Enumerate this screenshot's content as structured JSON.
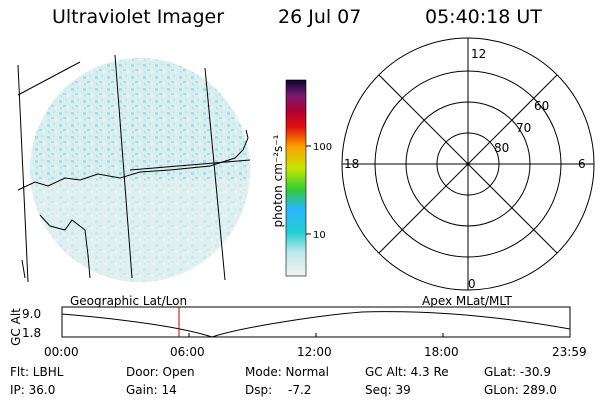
{
  "header": {
    "title": "Ultraviolet Imager",
    "date": "26 Jul 07",
    "time": "05:40:18 UT"
  },
  "colorbar": {
    "label": "photon cm⁻²s⁻¹",
    "ticks": [
      "100",
      "10"
    ]
  },
  "polar": {
    "mlt_labels": {
      "top": "12",
      "left": "18",
      "right": "6",
      "bottom": "0"
    },
    "lat_labels": [
      "60",
      "70",
      "80"
    ]
  },
  "panels": {
    "left_label": "Geographic Lat/Lon",
    "right_label": "Apex MLat/MLT"
  },
  "timeline": {
    "ylabel": "GC Alt",
    "yticks": [
      "9.0",
      "1.8"
    ],
    "xticks": [
      "00:00",
      "06:00",
      "12:00",
      "18:00",
      "23:59"
    ],
    "marker_time": "05:40:18"
  },
  "info": {
    "filter": "Flt: LBHL",
    "door": "Door: Open",
    "mode": "Mode: Normal",
    "gc_alt": "GC Alt: 4.3 Re",
    "glat": "GLat: -30.9",
    "ip": "IP: 36.0",
    "gain": "Gain: 14",
    "dsp_label": "Dsp:",
    "dsp_value": "-7.2",
    "seq": "Seq: 39",
    "glon": "GLon: 289.0"
  },
  "colors": {
    "image_tint": "#9fe3e6",
    "marker": "#cc0000"
  }
}
